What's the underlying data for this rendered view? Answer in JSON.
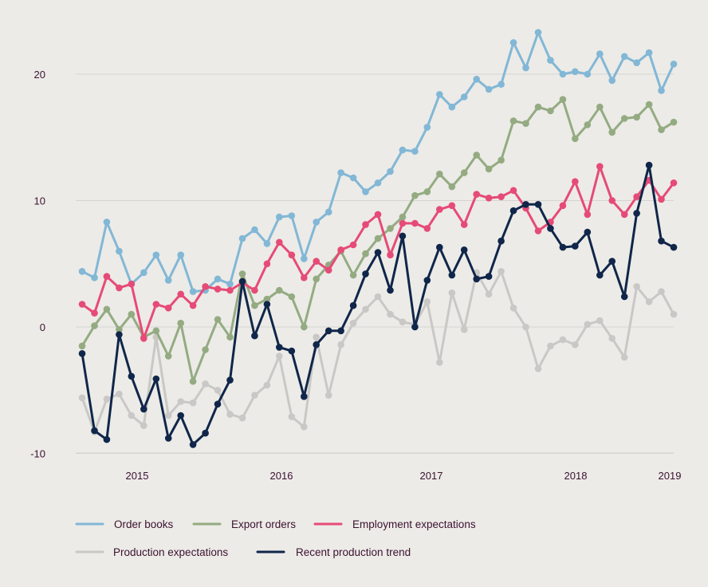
{
  "chart_data": {
    "type": "line",
    "x_tick_labels": [
      {
        "x": 0.9,
        "label": "2015"
      },
      {
        "x": 2.0,
        "label": "2016"
      },
      {
        "x": 3.2,
        "label": "2017"
      },
      {
        "x": 4.4,
        "label": "2018"
      },
      {
        "x": 5.2,
        "label": "2019"
      }
    ],
    "y_tick_labels": [
      {
        "value": 20,
        "label": "20"
      },
      {
        "value": 10,
        "label": "10"
      },
      {
        "value": 0,
        "label": "0"
      },
      {
        "value": -10,
        "label": "-10"
      }
    ],
    "ylim": [
      -10,
      20
    ],
    "xlim": [
      0,
      5.2
    ],
    "grid": true,
    "legend_position": "bottom",
    "series": [
      {
        "name": "Order books",
        "color": "#82b7d6",
        "values": [
          4.4,
          3.9,
          8.3,
          6.0,
          3.4,
          4.3,
          5.7,
          3.7,
          5.7,
          2.8,
          2.9,
          3.8,
          3.4,
          7.0,
          7.7,
          6.6,
          8.7,
          8.8,
          5.4,
          8.3,
          9.1,
          12.2,
          11.8,
          10.7,
          11.4,
          12.3,
          14.0,
          13.9,
          15.8,
          18.4,
          17.4,
          18.2,
          19.6,
          18.8,
          19.2,
          22.5,
          20.5,
          23.3,
          21.1,
          20.0,
          20.2,
          20.0,
          21.6,
          19.5,
          21.4,
          20.9,
          21.7,
          18.7,
          20.8
        ]
      },
      {
        "name": "Export orders",
        "color": "#94ab82",
        "values": [
          -1.5,
          0.1,
          1.4,
          -0.2,
          1.0,
          -0.8,
          -0.3,
          -2.3,
          0.3,
          -4.3,
          -1.8,
          0.6,
          -0.8,
          4.2,
          1.7,
          2.2,
          2.9,
          2.4,
          0.0,
          3.8,
          4.9,
          6.0,
          4.1,
          5.8,
          7.0,
          7.8,
          8.7,
          10.4,
          10.7,
          12.1,
          11.1,
          12.2,
          13.6,
          12.5,
          13.2,
          16.3,
          16.1,
          17.4,
          17.1,
          18.0,
          14.9,
          16.0,
          17.4,
          15.4,
          16.5,
          16.6,
          17.6,
          15.6,
          16.2
        ]
      },
      {
        "name": "Employment expectations",
        "color": "#e64b77",
        "values": [
          1.8,
          1.1,
          4.0,
          3.1,
          3.4,
          -0.9,
          1.8,
          1.5,
          2.6,
          1.7,
          3.2,
          3.0,
          2.9,
          3.5,
          2.9,
          5.0,
          6.7,
          5.7,
          3.9,
          5.2,
          4.5,
          6.1,
          6.5,
          8.1,
          8.9,
          5.7,
          8.2,
          8.2,
          7.8,
          9.3,
          9.6,
          8.1,
          10.5,
          10.2,
          10.3,
          10.8,
          9.4,
          7.6,
          8.3,
          9.6,
          11.5,
          8.9,
          12.7,
          10.0,
          8.9,
          10.3,
          11.6,
          10.1,
          11.4
        ]
      },
      {
        "name": "Production expectations",
        "color": "#c9c8c6",
        "values": [
          -5.6,
          -8.3,
          -5.7,
          -5.3,
          -7.0,
          -7.8,
          -0.8,
          -7.0,
          -5.9,
          -6.0,
          -4.5,
          -5.0,
          -6.9,
          -7.2,
          -5.4,
          -4.6,
          -2.3,
          -7.1,
          -7.9,
          -0.8,
          -5.4,
          -1.4,
          0.3,
          1.4,
          2.4,
          1.0,
          0.4,
          0.2,
          2.0,
          -2.8,
          2.7,
          -0.2,
          4.3,
          2.6,
          4.4,
          1.5,
          0.0,
          -3.3,
          -1.5,
          -1.0,
          -1.4,
          0.2,
          0.5,
          -0.9,
          -2.4,
          3.2,
          2.0,
          2.8,
          1.0
        ]
      },
      {
        "name": "Recent production trend",
        "color": "#10264a",
        "values": [
          -2.1,
          -8.2,
          -8.9,
          -0.6,
          -3.9,
          -6.5,
          -4.1,
          -8.8,
          -7.0,
          -9.3,
          -8.4,
          -6.1,
          -4.2,
          3.6,
          -0.7,
          1.8,
          -1.6,
          -1.9,
          -5.5,
          -1.4,
          -0.3,
          -0.3,
          1.7,
          4.2,
          5.9,
          2.9,
          7.2,
          0.0,
          3.7,
          6.3,
          4.1,
          6.1,
          3.8,
          4.0,
          6.8,
          9.2,
          9.7,
          9.7,
          7.8,
          6.3,
          6.4,
          7.5,
          4.1,
          5.2,
          2.4,
          9.0,
          12.8,
          6.8,
          6.3
        ]
      }
    ]
  }
}
